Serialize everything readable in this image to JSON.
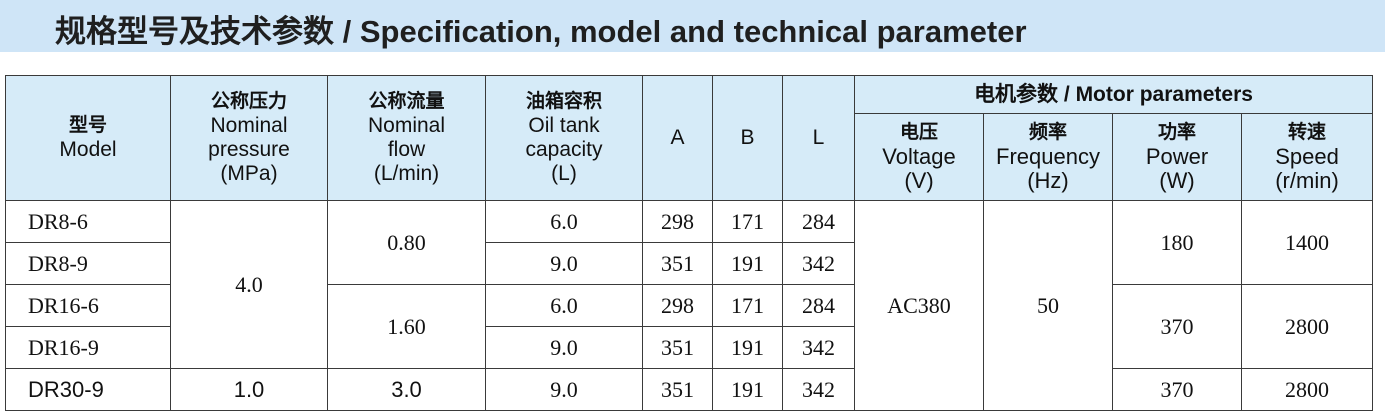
{
  "header": {
    "title": "规格型号及技术参数 / Specification, model and technical parameter"
  },
  "table": {
    "columns": [
      [
        "型号",
        "Model"
      ],
      [
        "公称压力",
        "Nominal",
        "pressure",
        "(MPa)"
      ],
      [
        "公称流量",
        "Nominal",
        "flow",
        "(L/min)"
      ],
      [
        "油箱容积",
        "Oil tank",
        "capacity",
        "(L)"
      ],
      [
        "A"
      ],
      [
        "B"
      ],
      [
        "L"
      ]
    ],
    "group": "电机参数 / Motor parameters",
    "subcolumns": [
      [
        "电压",
        "Voltage",
        "(V)"
      ],
      [
        "频率",
        "Frequency",
        "(Hz)"
      ],
      [
        "功率",
        "Power",
        "(W)"
      ],
      [
        "转速",
        "Speed",
        "(r/min)"
      ]
    ],
    "rows": [
      [
        "DR8-6",
        "4.0",
        "0.80",
        "6.0",
        "298",
        "171",
        "284",
        "AC380",
        "50",
        "180",
        "1400"
      ],
      [
        "DR8-9",
        "9.0",
        "351",
        "191",
        "342"
      ],
      [
        "DR16-6",
        "1.60",
        "6.0",
        "298",
        "171",
        "284",
        "370",
        "2800"
      ],
      [
        "DR16-9",
        "9.0",
        "351",
        "191",
        "342"
      ],
      [
        "DR30-9",
        "1.0",
        "3.0",
        "9.0",
        "351",
        "191",
        "342",
        "370",
        "2800"
      ]
    ]
  }
}
